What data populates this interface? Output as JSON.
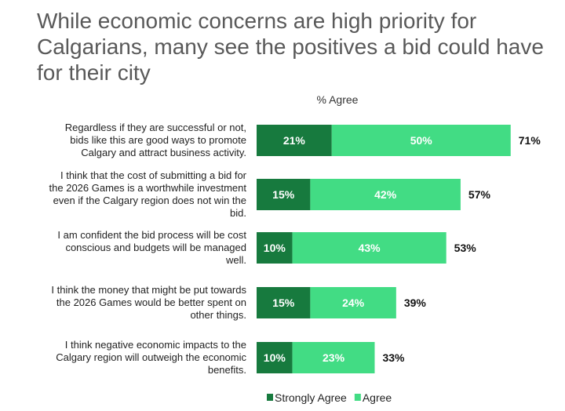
{
  "chart_data": {
    "type": "bar",
    "orientation": "horizontal",
    "stacked": true,
    "title": "While economic concerns are high priority for Calgarians, many see the positives a bid could have for their city",
    "subtitle": "% Agree",
    "categories": [
      "Regardless if they are successful or not, bids like this are good ways to promote Calgary and attract business activity.",
      "I think that the cost of submitting a bid for the 2026 Games is a worthwhile investment even if the Calgary region does not win the bid.",
      "I am confident the bid process will be cost conscious and budgets will be managed well.",
      "I think the money that might be put towards the 2026 Games would be better spent on other things.",
      "I think negative economic impacts to the Calgary region will outweigh the economic benefits."
    ],
    "category_lines": [
      [
        "Regardless if they are successful or not,",
        "bids like this are good ways to promote",
        "Calgary and attract business activity."
      ],
      [
        "I think that the cost of submitting a bid for",
        "the 2026 Games is a worthwhile investment",
        "even if the Calgary region does not win the",
        "bid."
      ],
      [
        "I am confident the bid process will be cost",
        "conscious and budgets will be managed",
        "well."
      ],
      [
        "I think the money that might be put towards",
        "the 2026 Games would be better spent on",
        "other things."
      ],
      [
        "I think negative economic impacts to the",
        "Calgary region will outweigh the economic",
        "benefits."
      ]
    ],
    "series": [
      {
        "name": "Strongly Agree",
        "values": [
          21,
          15,
          10,
          15,
          10
        ],
        "color": "#177a3e"
      },
      {
        "name": "Agree",
        "values": [
          50,
          42,
          43,
          24,
          23
        ],
        "color": "#42dc84"
      }
    ],
    "totals": [
      71,
      57,
      53,
      39,
      33
    ],
    "unit": "%",
    "legend_position": "bottom",
    "grid": false
  }
}
